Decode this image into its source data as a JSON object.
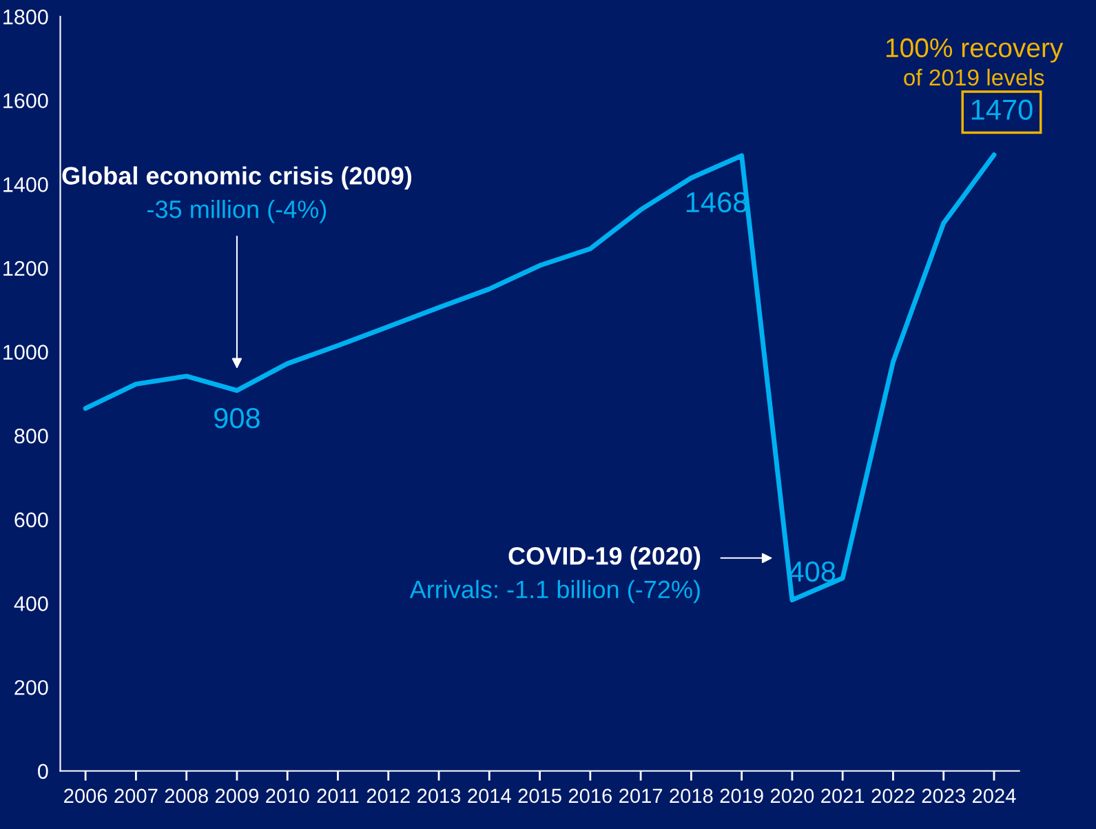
{
  "chart_data": {
    "type": "line",
    "categories": [
      "2006",
      "2007",
      "2008",
      "2009",
      "2010",
      "2011",
      "2012",
      "2013",
      "2014",
      "2015",
      "2016",
      "2017",
      "2018",
      "2019",
      "2020",
      "2021",
      "2022",
      "2023",
      "2024"
    ],
    "series": [
      {
        "color": "#00b0f0",
        "values": [
          865,
          923,
          942,
          908,
          972,
          1015,
          1060,
          1106,
          1150,
          1206,
          1246,
          1339,
          1415,
          1468,
          408,
          460,
          976,
          1307,
          1470
        ],
        "value_labels": [
          null,
          null,
          null,
          "908",
          null,
          null,
          null,
          null,
          null,
          null,
          null,
          null,
          null,
          "1468",
          "408",
          null,
          null,
          null,
          "1470"
        ]
      }
    ],
    "ylim": [
      0,
      1800
    ],
    "yticks": [
      0,
      200,
      400,
      600,
      800,
      1000,
      1200,
      1400,
      1600,
      1800
    ],
    "grid": false,
    "marker": "none",
    "line_style": "solid",
    "annotations": [
      "Global economic crisis (2009)",
      "-35 million (-4%)",
      "COVID-19 (2020)",
      "Arrivals: -1.1 billion (-72%)",
      "100% recovery",
      "of 2019 levels"
    ]
  }
}
